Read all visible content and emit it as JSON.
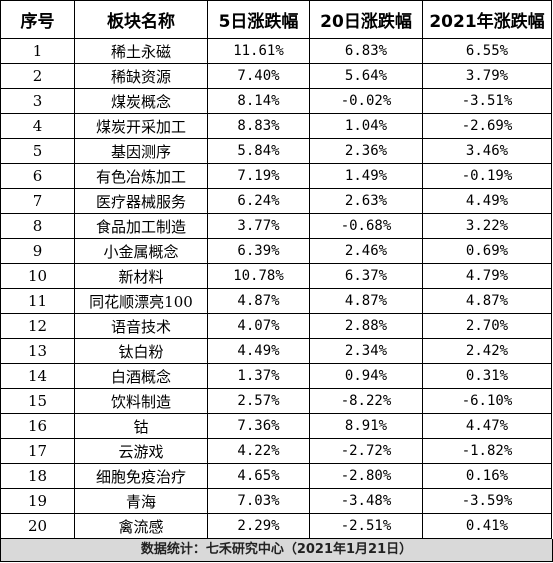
{
  "table": {
    "headers": [
      "序号",
      "板块名称",
      "5日涨跌幅",
      "20日涨跌幅",
      "2021年涨跌幅"
    ],
    "rows": [
      [
        "1",
        "稀土永磁",
        "11.61%",
        "6.83%",
        "6.55%"
      ],
      [
        "2",
        "稀缺资源",
        "7.40%",
        "5.64%",
        "3.79%"
      ],
      [
        "3",
        "煤炭概念",
        "8.14%",
        "-0.02%",
        "-3.51%"
      ],
      [
        "4",
        "煤炭开采加工",
        "8.83%",
        "1.04%",
        "-2.69%"
      ],
      [
        "5",
        "基因测序",
        "5.84%",
        "2.36%",
        "3.46%"
      ],
      [
        "6",
        "有色冶炼加工",
        "7.19%",
        "1.49%",
        "-0.19%"
      ],
      [
        "7",
        "医疗器械服务",
        "6.24%",
        "2.63%",
        "4.49%"
      ],
      [
        "8",
        "食品加工制造",
        "3.77%",
        "-0.68%",
        "3.22%"
      ],
      [
        "9",
        "小金属概念",
        "6.39%",
        "2.46%",
        "0.69%"
      ],
      [
        "10",
        "新材料",
        "10.78%",
        "6.37%",
        "4.79%"
      ],
      [
        "11",
        "同花顺漂亮100",
        "4.87%",
        "4.87%",
        "4.87%"
      ],
      [
        "12",
        "语音技术",
        "4.07%",
        "2.88%",
        "2.70%"
      ],
      [
        "13",
        "钛白粉",
        "4.49%",
        "2.34%",
        "2.42%"
      ],
      [
        "14",
        "白酒概念",
        "1.37%",
        "0.94%",
        "0.31%"
      ],
      [
        "15",
        "饮料制造",
        "2.57%",
        "-8.22%",
        "-6.10%"
      ],
      [
        "16",
        "钴",
        "7.36%",
        "8.91%",
        "4.47%"
      ],
      [
        "17",
        "云游戏",
        "4.22%",
        "-2.72%",
        "-1.82%"
      ],
      [
        "18",
        "细胞免疫治疗",
        "4.65%",
        "-2.80%",
        "0.16%"
      ],
      [
        "19",
        "青海",
        "7.03%",
        "-3.48%",
        "-3.59%"
      ],
      [
        "20",
        "禽流感",
        "2.29%",
        "-2.51%",
        "0.41%"
      ]
    ]
  },
  "footer": {
    "text": "数据统计：七禾研究中心（2021年1月21日）",
    "background": "#d9d9d9"
  }
}
